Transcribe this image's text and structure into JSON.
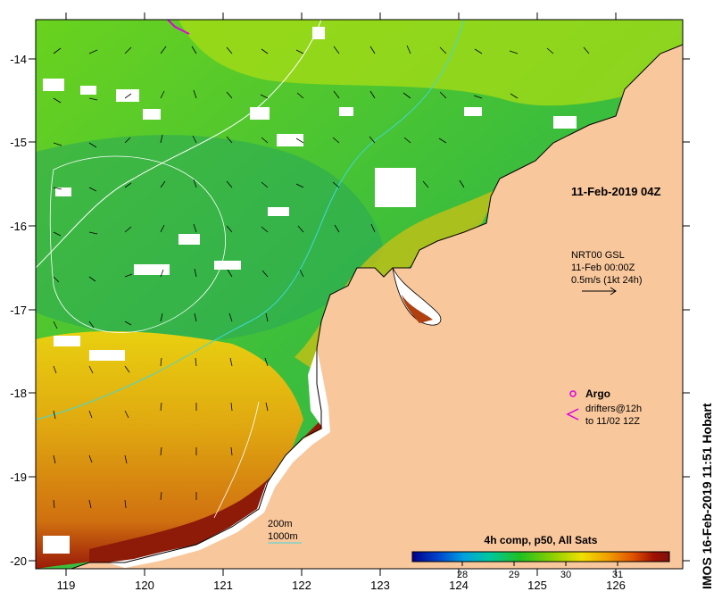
{
  "map": {
    "lon_ticks": [
      "119",
      "120",
      "121",
      "122",
      "123",
      "124",
      "125",
      "126"
    ],
    "lat_ticks": [
      "-14",
      "-15",
      "-16",
      "-17",
      "-18",
      "-19",
      "-20"
    ],
    "lon_range": [
      118.65,
      126.75
    ],
    "lat_range": [
      -20.1,
      -13.5
    ]
  },
  "overlay": {
    "date_label": "11-Feb-2019 04Z",
    "current_source": "NRT00 GSL",
    "current_time": "11-Feb 00:00Z",
    "current_scale": "0.5m/s (1kt 24h)",
    "argo_label": "Argo",
    "drifters_line1": "drifters@12h",
    "drifters_line2": "to 11/02 12Z",
    "isobath_200": "200m",
    "isobath_1000": "1000m",
    "credit": "IMOS 16-Feb-2019 11:51 Hobart"
  },
  "colorbar": {
    "title": "4h comp, p50, All Sats",
    "ticks": [
      "28",
      "29",
      "30",
      "31"
    ],
    "colors": [
      "#00008b",
      "#0044cc",
      "#00a0e0",
      "#00c8a0",
      "#20c020",
      "#90d000",
      "#f0e000",
      "#f0a000",
      "#e05000",
      "#a01000",
      "#801010"
    ]
  },
  "colors": {
    "land": "#f9c79c",
    "cloud": "#ffffff",
    "argo": "#e000e0",
    "isobath": "#40d8d8"
  }
}
